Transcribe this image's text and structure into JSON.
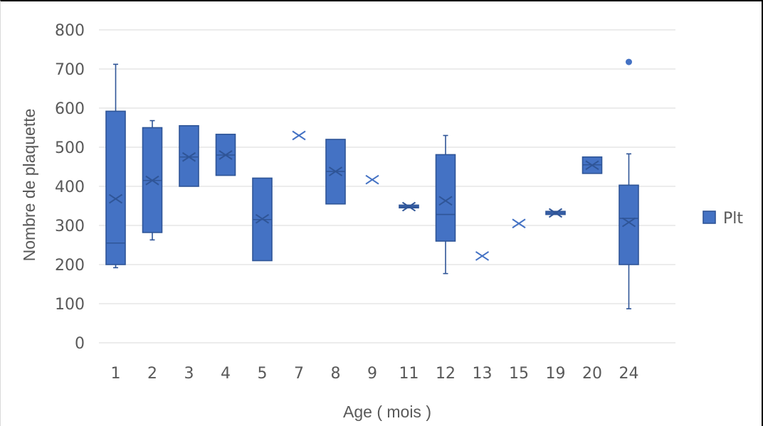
{
  "chart_data": {
    "type": "box",
    "title": "",
    "xlabel": "Age ( mois )",
    "ylabel": "Nombre de plaquette",
    "ylim": [
      0,
      800
    ],
    "yticks": [
      0,
      100,
      200,
      300,
      400,
      500,
      600,
      700,
      800
    ],
    "grid": true,
    "legend_position": "right",
    "colors": {
      "series": "#4472c4",
      "stroke": "#2f5597",
      "grid": "#d9d9d9",
      "text": "#595959"
    },
    "series": [
      {
        "name": "Plt",
        "boxes": [
          {
            "category": "1",
            "whisker_low": 192,
            "q1": 200,
            "median": 255,
            "q3": 592,
            "whisker_high": 712,
            "mean": 368
          },
          {
            "category": "2",
            "whisker_low": 263,
            "q1": 282,
            "median": 415,
            "q3": 550,
            "whisker_high": 568,
            "mean": 415
          },
          {
            "category": "3",
            "whisker_low": 400,
            "q1": 400,
            "median": 475,
            "q3": 555,
            "whisker_high": 555,
            "mean": 475
          },
          {
            "category": "4",
            "whisker_low": 428,
            "q1": 428,
            "median": 480,
            "q3": 533,
            "whisker_high": 533,
            "mean": 480
          },
          {
            "category": "5",
            "whisker_low": 210,
            "q1": 210,
            "median": 315,
            "q3": 421,
            "whisker_high": 421,
            "mean": 317
          },
          {
            "category": "7",
            "whisker_low": 530,
            "q1": 530,
            "median": 530,
            "q3": 530,
            "whisker_high": 530,
            "mean": 530
          },
          {
            "category": "8",
            "whisker_low": 355,
            "q1": 355,
            "median": 438,
            "q3": 520,
            "whisker_high": 520,
            "mean": 438
          },
          {
            "category": "9",
            "whisker_low": 417,
            "q1": 417,
            "median": 417,
            "q3": 417,
            "whisker_high": 417,
            "mean": 417
          },
          {
            "category": "11",
            "whisker_low": 345,
            "q1": 345,
            "median": 348,
            "q3": 352,
            "whisker_high": 352,
            "mean": 348
          },
          {
            "category": "12",
            "whisker_low": 177,
            "q1": 260,
            "median": 328,
            "q3": 481,
            "whisker_high": 530,
            "mean": 363
          },
          {
            "category": "13",
            "whisker_low": 222,
            "q1": 222,
            "median": 222,
            "q3": 222,
            "whisker_high": 222,
            "mean": 222
          },
          {
            "category": "15",
            "whisker_low": 305,
            "q1": 305,
            "median": 305,
            "q3": 305,
            "whisker_high": 305,
            "mean": 305
          },
          {
            "category": "19",
            "whisker_low": 328,
            "q1": 328,
            "median": 332,
            "q3": 336,
            "whisker_high": 336,
            "mean": 332
          },
          {
            "category": "20",
            "whisker_low": 433,
            "q1": 433,
            "median": 455,
            "q3": 475,
            "whisker_high": 475,
            "mean": 454
          },
          {
            "category": "24",
            "whisker_low": 87,
            "q1": 200,
            "median": 318,
            "q3": 403,
            "whisker_high": 483,
            "mean": 308,
            "outliers": [
              718
            ]
          }
        ]
      }
    ]
  }
}
